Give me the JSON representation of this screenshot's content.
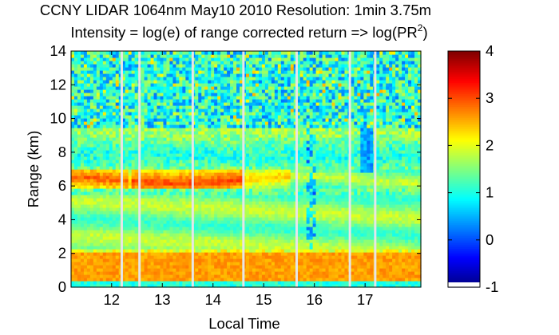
{
  "chart_data": {
    "type": "heatmap",
    "title_line1": "CCNY LIDAR 1064nm May10 2010 Resolution: 1min 3.75m",
    "title_line2_prefix": "Intensity = log(e) of range corrected return => log(PR",
    "title_line2_superscript": "2",
    "title_line2_suffix": ")",
    "xlabel": "Local Time",
    "ylabel": "Range (km)",
    "xlim": [
      11.2,
      18.1
    ],
    "ylim": [
      0,
      14
    ],
    "xticks": [
      12,
      13,
      14,
      15,
      16,
      17
    ],
    "xtick_labels": [
      "12",
      "13",
      "14",
      "15",
      "16",
      "17"
    ],
    "yticks": [
      0,
      2,
      4,
      6,
      8,
      10,
      12,
      14
    ],
    "ytick_labels": [
      "0",
      "2",
      "4",
      "6",
      "8",
      "10",
      "12",
      "14"
    ],
    "colorbar": {
      "colormap": "jet",
      "clim": [
        -1,
        4
      ],
      "ticks": [
        -1,
        0,
        1,
        2,
        3,
        4
      ],
      "tick_labels": [
        "-1",
        "0",
        "1",
        "2",
        "3",
        "4"
      ]
    },
    "data_gaps_local_time": [
      12.2,
      12.55,
      13.6,
      14.6,
      15.65,
      16.7,
      17.2
    ],
    "features": {
      "boundary_layer_top_km": 2.0,
      "boundary_layer_intensity": 2.6,
      "elevated_layer_km": [
        5.8,
        7.0
      ],
      "elevated_layer_intensity": 2.7,
      "free_troposphere_intensity": 1.5,
      "upper_noise_intensity": 1.0,
      "cloud_time_range": [
        16.9,
        17.15
      ],
      "cloud_altitude_km": [
        6.8,
        9.5
      ]
    }
  }
}
